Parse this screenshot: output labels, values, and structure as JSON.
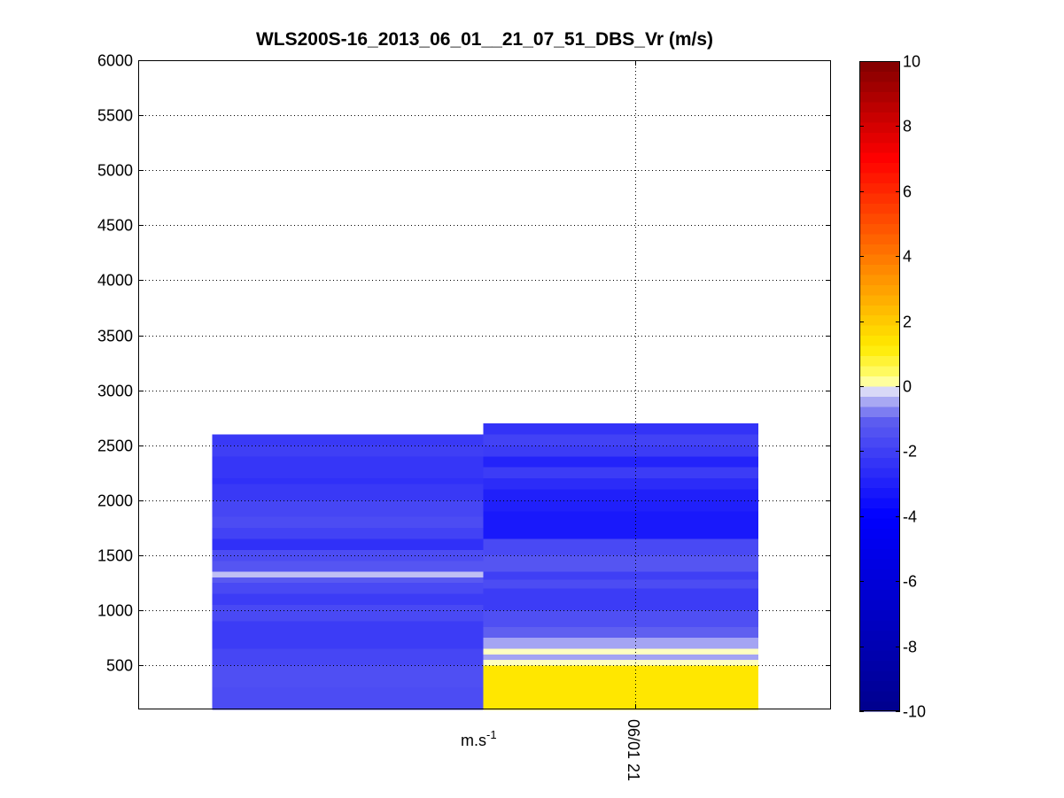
{
  "chart_data": {
    "type": "heatmap",
    "title": "WLS200S-16_2013_06_01__21_07_51_DBS_Vr (m/s)",
    "xlabel": "",
    "ylabel": "",
    "ylim": [
      100,
      6000
    ],
    "yticks": [
      500,
      1000,
      1500,
      2000,
      2500,
      3000,
      3500,
      4000,
      4500,
      5000,
      5500,
      6000
    ],
    "x_tick_label": "06/01 21",
    "x_unit_label": {
      "base": "m.s",
      "sup": "-1"
    },
    "grid": true,
    "colorbar": {
      "range": [
        -10,
        10
      ],
      "ticks": [
        -10,
        -8,
        -6,
        -4,
        -2,
        0,
        2,
        4,
        6,
        8,
        10
      ]
    },
    "columns": [
      {
        "x_start": 0.107,
        "x_end": 0.498,
        "top": 2600,
        "cells": [
          {
            "y0": 2500,
            "y1": 2600,
            "v": -2.2
          },
          {
            "y0": 2400,
            "y1": 2500,
            "v": -2.0
          },
          {
            "y0": 2200,
            "y1": 2400,
            "v": -2.3
          },
          {
            "y0": 2150,
            "y1": 2200,
            "v": -2.5
          },
          {
            "y0": 2000,
            "y1": 2150,
            "v": -2.2
          },
          {
            "y0": 1850,
            "y1": 2000,
            "v": -1.8
          },
          {
            "y0": 1750,
            "y1": 1850,
            "v": -1.6
          },
          {
            "y0": 1650,
            "y1": 1750,
            "v": -1.9
          },
          {
            "y0": 1550,
            "y1": 1650,
            "v": -2.5
          },
          {
            "y0": 1450,
            "y1": 1550,
            "v": -1.6
          },
          {
            "y0": 1350,
            "y1": 1450,
            "v": -1.3
          },
          {
            "y0": 1300,
            "y1": 1350,
            "v": -0.3
          },
          {
            "y0": 1250,
            "y1": 1300,
            "v": -1.2
          },
          {
            "y0": 1150,
            "y1": 1250,
            "v": -1.7
          },
          {
            "y0": 1050,
            "y1": 1150,
            "v": -2.1
          },
          {
            "y0": 900,
            "y1": 1050,
            "v": -1.7
          },
          {
            "y0": 650,
            "y1": 900,
            "v": -2.1
          },
          {
            "y0": 500,
            "y1": 650,
            "v": -1.8
          },
          {
            "y0": 300,
            "y1": 500,
            "v": -1.5
          },
          {
            "y0": 100,
            "y1": 300,
            "v": -1.6
          }
        ]
      },
      {
        "x_start": 0.498,
        "x_end": 0.895,
        "top": 2700,
        "cells": [
          {
            "y0": 2600,
            "y1": 2700,
            "v": -2.4
          },
          {
            "y0": 2500,
            "y1": 2600,
            "v": -1.9
          },
          {
            "y0": 2400,
            "y1": 2500,
            "v": -2.1
          },
          {
            "y0": 2300,
            "y1": 2400,
            "v": -2.9
          },
          {
            "y0": 2200,
            "y1": 2300,
            "v": -2.1
          },
          {
            "y0": 2100,
            "y1": 2200,
            "v": -2.6
          },
          {
            "y0": 1900,
            "y1": 2100,
            "v": -3.0
          },
          {
            "y0": 1650,
            "y1": 1900,
            "v": -3.2
          },
          {
            "y0": 1500,
            "y1": 1650,
            "v": -1.7
          },
          {
            "y0": 1350,
            "y1": 1500,
            "v": -1.3
          },
          {
            "y0": 1280,
            "y1": 1350,
            "v": -2.0
          },
          {
            "y0": 1200,
            "y1": 1280,
            "v": -1.6
          },
          {
            "y0": 1000,
            "y1": 1200,
            "v": -2.1
          },
          {
            "y0": 850,
            "y1": 1000,
            "v": -1.5
          },
          {
            "y0": 750,
            "y1": 850,
            "v": -1.0
          },
          {
            "y0": 650,
            "y1": 750,
            "v": -0.5
          },
          {
            "y0": 600,
            "y1": 650,
            "v": 0.1
          },
          {
            "y0": 550,
            "y1": 600,
            "v": -0.5
          },
          {
            "y0": 500,
            "y1": 550,
            "v": 0.1
          },
          {
            "y0": 100,
            "y1": 500,
            "v": 1.3
          }
        ]
      }
    ]
  }
}
